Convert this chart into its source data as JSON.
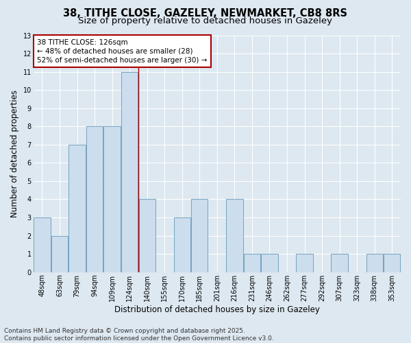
{
  "title_line1": "38, TITHE CLOSE, GAZELEY, NEWMARKET, CB8 8RS",
  "title_line2": "Size of property relative to detached houses in Gazeley",
  "xlabel": "Distribution of detached houses by size in Gazeley",
  "ylabel": "Number of detached properties",
  "categories": [
    "48sqm",
    "63sqm",
    "79sqm",
    "94sqm",
    "109sqm",
    "124sqm",
    "140sqm",
    "155sqm",
    "170sqm",
    "185sqm",
    "201sqm",
    "216sqm",
    "231sqm",
    "246sqm",
    "262sqm",
    "277sqm",
    "292sqm",
    "307sqm",
    "323sqm",
    "338sqm",
    "353sqm"
  ],
  "values": [
    3,
    2,
    7,
    8,
    8,
    11,
    4,
    0,
    3,
    4,
    0,
    4,
    1,
    1,
    0,
    1,
    0,
    1,
    0,
    1,
    1
  ],
  "bar_color": "#ccdded",
  "bar_edge_color": "#6699bb",
  "red_line_x": 5.5,
  "red_line_color": "#aa0000",
  "annotation_text": "38 TITHE CLOSE: 126sqm\n← 48% of detached houses are smaller (28)\n52% of semi-detached houses are larger (30) →",
  "annotation_box_color": "white",
  "annotation_box_edge": "#aa0000",
  "ylim": [
    0,
    13
  ],
  "yticks": [
    0,
    1,
    2,
    3,
    4,
    5,
    6,
    7,
    8,
    9,
    10,
    11,
    12,
    13
  ],
  "footnote": "Contains HM Land Registry data © Crown copyright and database right 2025.\nContains public sector information licensed under the Open Government Licence v3.0.",
  "bg_color": "#dde8f0",
  "plot_bg_color": "#dde8f0",
  "grid_color": "#ffffff",
  "title_fontsize": 10.5,
  "subtitle_fontsize": 9.5,
  "axis_label_fontsize": 8.5,
  "tick_fontsize": 7,
  "annot_fontsize": 7.5,
  "footnote_fontsize": 6.5
}
